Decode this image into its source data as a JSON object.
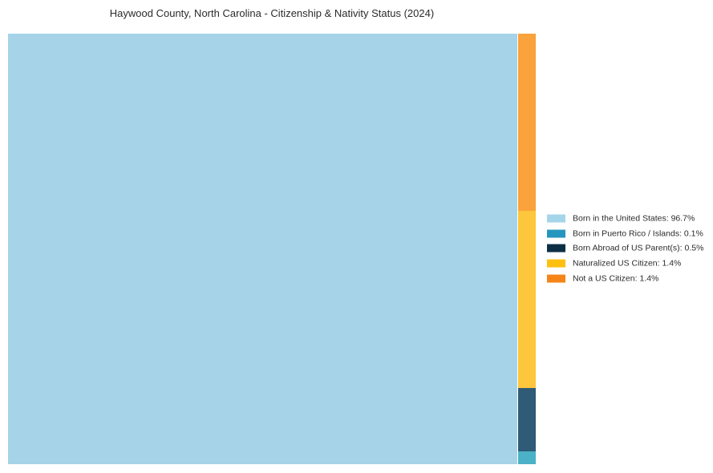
{
  "title": "Haywood County, North Carolina - Citizenship & Nativity Status (2024)",
  "chart_data": {
    "type": "treemap",
    "title": "Haywood County, North Carolina - Citizenship & Nativity Status (2024)",
    "unit": "%",
    "legend_position": "right-center",
    "layout": {
      "main_category": "Born in the United States",
      "strip_order_top_to_bottom": [
        "Not a US Citizen",
        "Naturalized US Citizen",
        "Born Abroad of US Parent(s)",
        "Born in Puerto Rico / Islands"
      ]
    },
    "categories": [
      {
        "label": "Born in the United States",
        "value": 96.7,
        "legend_color": "#A5D5E8",
        "tile_color": "#A6D3E8"
      },
      {
        "label": "Born in Puerto Rico / Islands",
        "value": 0.1,
        "legend_color": "#2596BE",
        "tile_color": "#4BB1C6"
      },
      {
        "label": "Born Abroad of US Parent(s)",
        "value": 0.5,
        "legend_color": "#0D2F45",
        "tile_color": "#2F5B76"
      },
      {
        "label": "Naturalized US Citizen",
        "value": 1.4,
        "legend_color": "#FDC010",
        "tile_color": "#FDC63C"
      },
      {
        "label": "Not a US Citizen",
        "value": 1.4,
        "legend_color": "#F58518",
        "tile_color": "#FAA23C"
      }
    ]
  }
}
